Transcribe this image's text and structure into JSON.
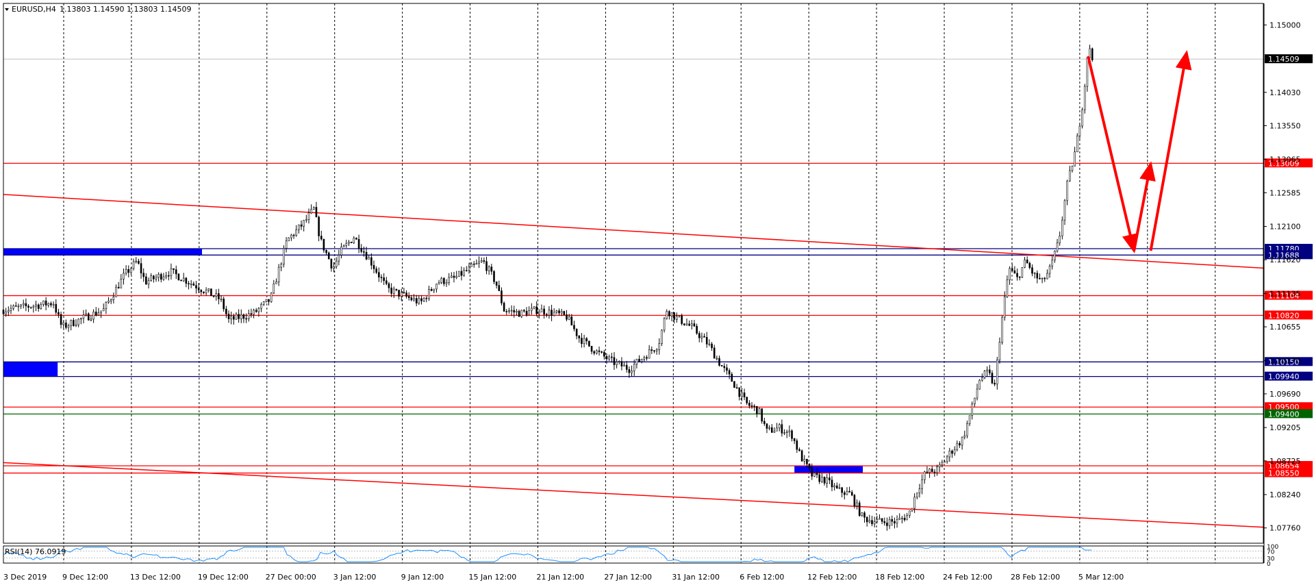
{
  "header": {
    "symbol": "EURUSD,H4",
    "ohlc": "1.13803 1.14590 1.13803 1.14509"
  },
  "rsi": {
    "label": "RSI(14) 76.0919",
    "scale_labels": [
      "100",
      "70",
      "30",
      "0"
    ]
  },
  "colors": {
    "background": "#ffffff",
    "grid": "#000000",
    "candle": "#000000",
    "level_red": "#ff0000",
    "level_blue": "#000080",
    "level_green": "#006400",
    "zone_blue": "#0000ff",
    "rsi_line": "#1e90ff"
  },
  "chart_data": {
    "type": "candlestick",
    "title": "",
    "symbol": "EURUSD",
    "timeframe": "H4",
    "last_price": 1.14509,
    "ylim": [
      1.0754,
      1.1531
    ],
    "y_ticks": [
      "1.15000",
      "1.14030",
      "1.13550",
      "1.13065",
      "1.12585",
      "1.12100",
      "1.11620",
      "1.11135",
      "1.10655",
      "1.10170",
      "1.09690",
      "1.09205",
      "1.08725",
      "1.08240",
      "1.07760"
    ],
    "x_labels": [
      "3 Dec 2019",
      "9 Dec 12:00",
      "13 Dec 12:00",
      "19 Dec 12:00",
      "27 Dec 00:00",
      "3 Jan 12:00",
      "9 Jan 12:00",
      "15 Jan 12:00",
      "21 Jan 12:00",
      "27 Jan 12:00",
      "31 Jan 12:00",
      "6 Feb 12:00",
      "12 Feb 12:00",
      "18 Feb 12:00",
      "24 Feb 12:00",
      "28 Feb 12:00",
      "5 Mar 12:00"
    ],
    "x_range": [
      0,
      1510
    ],
    "price_path": [
      [
        0,
        1.109
      ],
      [
        30,
        1.1095
      ],
      [
        60,
        1.11
      ],
      [
        70,
        1.1065
      ],
      [
        90,
        1.1075
      ],
      [
        120,
        1.109
      ],
      [
        145,
        1.114
      ],
      [
        160,
        1.116
      ],
      [
        170,
        1.113
      ],
      [
        200,
        1.1145
      ],
      [
        230,
        1.1125
      ],
      [
        260,
        1.1105
      ],
      [
        270,
        1.1075
      ],
      [
        300,
        1.1085
      ],
      [
        320,
        1.1105
      ],
      [
        340,
        1.119
      ],
      [
        360,
        1.1215
      ],
      [
        372,
        1.1235
      ],
      [
        380,
        1.119
      ],
      [
        395,
        1.115
      ],
      [
        405,
        1.1175
      ],
      [
        420,
        1.1195
      ],
      [
        440,
        1.116
      ],
      [
        460,
        1.112
      ],
      [
        480,
        1.111
      ],
      [
        500,
        1.11
      ],
      [
        520,
        1.113
      ],
      [
        540,
        1.1135
      ],
      [
        560,
        1.115
      ],
      [
        575,
        1.116
      ],
      [
        590,
        1.113
      ],
      [
        600,
        1.109
      ],
      [
        620,
        1.1085
      ],
      [
        640,
        1.109
      ],
      [
        660,
        1.1085
      ],
      [
        675,
        1.108
      ],
      [
        690,
        1.105
      ],
      [
        710,
        1.103
      ],
      [
        730,
        1.1015
      ],
      [
        750,
        1.1005
      ],
      [
        770,
        1.1025
      ],
      [
        785,
        1.104
      ],
      [
        795,
        1.109
      ],
      [
        805,
        1.108
      ],
      [
        825,
        1.1065
      ],
      [
        845,
        1.104
      ],
      [
        860,
        1.101
      ],
      [
        875,
        1.0985
      ],
      [
        890,
        1.0955
      ],
      [
        905,
        1.0945
      ],
      [
        915,
        1.0915
      ],
      [
        930,
        1.092
      ],
      [
        945,
        1.091
      ],
      [
        955,
        1.088
      ],
      [
        970,
        1.085
      ],
      [
        985,
        1.0845
      ],
      [
        1000,
        1.083
      ],
      [
        1015,
        1.0825
      ],
      [
        1030,
        1.079
      ],
      [
        1050,
        1.0785
      ],
      [
        1070,
        1.0785
      ],
      [
        1085,
        1.0795
      ],
      [
        1095,
        1.083
      ],
      [
        1105,
        1.0855
      ],
      [
        1120,
        1.086
      ],
      [
        1135,
        1.0885
      ],
      [
        1150,
        1.0905
      ],
      [
        1160,
        1.0945
      ],
      [
        1170,
        1.099
      ],
      [
        1180,
        1.1
      ],
      [
        1188,
        1.098
      ],
      [
        1195,
        1.106
      ],
      [
        1205,
        1.115
      ],
      [
        1215,
        1.1135
      ],
      [
        1225,
        1.116
      ],
      [
        1235,
        1.114
      ],
      [
        1245,
        1.113
      ],
      [
        1255,
        1.115
      ],
      [
        1265,
        1.119
      ],
      [
        1275,
        1.127
      ],
      [
        1285,
        1.132
      ],
      [
        1295,
        1.14
      ],
      [
        1300,
        1.147
      ],
      [
        1305,
        1.1451
      ]
    ],
    "horizontal_levels": [
      {
        "price": 1.13009,
        "label": "1.13009",
        "color": "red"
      },
      {
        "price": 1.1178,
        "label": "1.11780",
        "color": "blue"
      },
      {
        "price": 1.11688,
        "label": "1.11688",
        "color": "blue"
      },
      {
        "price": 1.11104,
        "label": "1.11104",
        "color": "red"
      },
      {
        "price": 1.1082,
        "label": "1.10820",
        "color": "red"
      },
      {
        "price": 1.1015,
        "label": "1.10150",
        "color": "blue"
      },
      {
        "price": 1.0994,
        "label": "1.09940",
        "color": "blue"
      },
      {
        "price": 1.095,
        "label": "1.09500",
        "color": "red"
      },
      {
        "price": 1.094,
        "label": "1.09400",
        "color": "green"
      },
      {
        "price": 1.08654,
        "label": "1.08654",
        "color": "red"
      },
      {
        "price": 1.0855,
        "label": "1.08550",
        "color": "red"
      }
    ],
    "trendlines": [
      {
        "x1": 0,
        "y1": 1.1256,
        "x2": 1510,
        "y2": 1.115
      },
      {
        "x1": 0,
        "y1": 1.087,
        "x2": 1510,
        "y2": 1.0777
      }
    ],
    "zones": [
      {
        "x1": 0,
        "x2": 238,
        "p1": 1.1178,
        "p2": 1.11688
      },
      {
        "x1": 0,
        "x2": 65,
        "p1": 1.1015,
        "p2": 1.0994
      },
      {
        "x1": 948,
        "x2": 1030,
        "p1": 1.08654,
        "p2": 1.0855
      }
    ],
    "forecast_arrows": [
      [
        [
          1300,
          1.1455
        ],
        [
          1355,
          1.1175
        ]
      ],
      [
        [
          1355,
          1.1175
        ],
        [
          1375,
          1.13
        ]
      ],
      [
        [
          1375,
          1.1175
        ],
        [
          1418,
          1.146
        ]
      ]
    ],
    "rsi_value": 76.0919
  }
}
